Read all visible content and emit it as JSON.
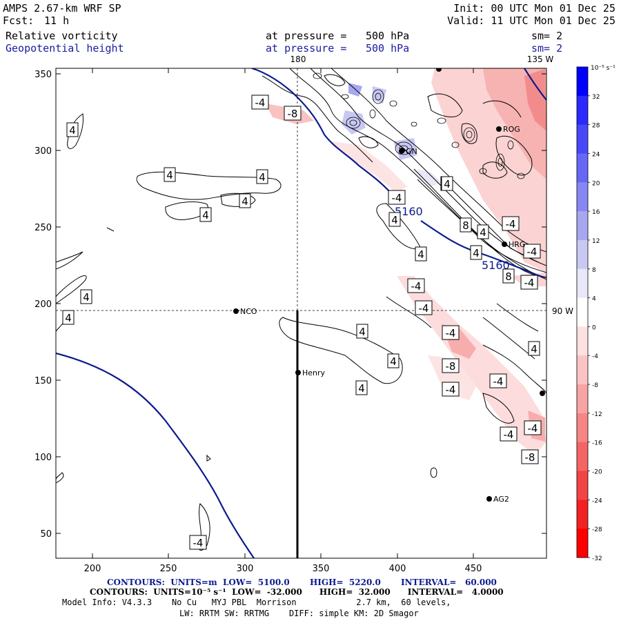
{
  "header": {
    "model_title": "AMPS 2.67-km WRF SP",
    "forecast_label": "Fcst:",
    "forecast_hours": "11 h",
    "init_time": "Init: 00 UTC Mon 01 Dec 25",
    "valid_time": "Valid: 11 UTC Mon 01 Dec 25",
    "field1_name": "Relative vorticity",
    "field1_level_label": "at pressure =",
    "field1_level_value": "500 hPa",
    "field1_smooth": "sm= 2",
    "field2_name": "Geopotential height",
    "field2_level_label": "at pressure =",
    "field2_level_value": "500 hPa",
    "field2_smooth": "sm= 2"
  },
  "map": {
    "meridian_180": "180",
    "meridian_135w": "135 W",
    "meridian_90w": "90 W",
    "x_ticks": [
      "200",
      "250",
      "300",
      "350",
      "400",
      "450"
    ],
    "y_ticks": [
      "350",
      "300",
      "250",
      "200",
      "150",
      "100",
      "50"
    ],
    "stations": [
      {
        "name": "ROG"
      },
      {
        "name": "HRG"
      },
      {
        "name": "NCO"
      },
      {
        "name": "Henry"
      },
      {
        "name": "AG2"
      },
      {
        "name": "GN"
      }
    ],
    "height_contour_labels": [
      "5160",
      "5160"
    ],
    "vorticity_labels": [
      "-4",
      "-8",
      "4",
      "4",
      "4",
      "4",
      "4",
      "4",
      "4",
      "4",
      "4",
      "4",
      "4",
      "4",
      "4",
      "4",
      "8",
      "4",
      "-4",
      "4",
      "-4",
      "8",
      "-4",
      "-4",
      "-4",
      "-4",
      "-8",
      "-4",
      "-4",
      "4",
      "-4",
      "-4",
      "-8",
      "-4",
      "-4",
      "4"
    ]
  },
  "colorbar": {
    "unit": "10⁻⁵ s⁻¹",
    "labels": [
      "32",
      "28",
      "24",
      "20",
      "16",
      "12",
      "8",
      "4",
      "0",
      "-4",
      "-8",
      "-12",
      "-16",
      "-20",
      "-24",
      "-28",
      "-32"
    ],
    "colors": [
      "#0000ff",
      "#2a2aff",
      "#4848fa",
      "#6767f6",
      "#8787f3",
      "#a7a7f1",
      "#c8c8f3",
      "#e8e8f8",
      "#ffffff",
      "#fde0e0",
      "#fbc4c4",
      "#f8a4a4",
      "#f68686",
      "#f46464",
      "#f24444",
      "#f22222",
      "#ff0000"
    ]
  },
  "footer": {
    "contours_height": "CONTOURS:  UNITS=m  LOW=  5100.0       HIGH=  5220.0       INTERVAL=   60.000",
    "contours_vort": "CONTOURS:  UNITS=10⁻⁵ s⁻¹  LOW=  -32.000      HIGH=  32.000      INTERVAL=   4.0000",
    "model_info_1": "Model Info: V4.3.3    No Cu   MYJ PBL  Morrison            2.7 km,  60 levels,",
    "model_info_2": "LW: RRTM SW: RRTMG    DIFF: simple KM: 2D Smagor"
  }
}
